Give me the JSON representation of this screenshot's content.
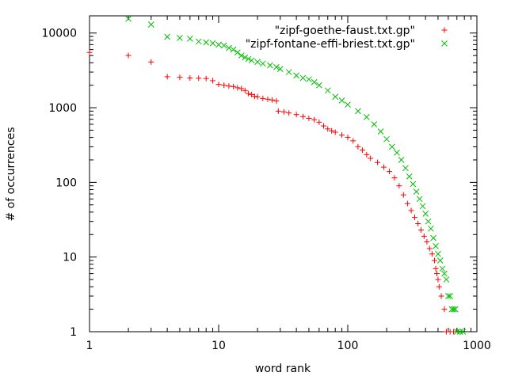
{
  "chart_data": {
    "type": "scatter",
    "title": "",
    "xlabel": "word rank",
    "ylabel": "# of occurrences",
    "xscale": "log",
    "yscale": "log",
    "xlim": [
      1,
      1000
    ],
    "ylim": [
      1,
      17000
    ],
    "grid": false,
    "legend_position": "top-right",
    "x_ticks": [
      {
        "value": 1,
        "label": "1"
      },
      {
        "value": 10,
        "label": "10"
      },
      {
        "value": 100,
        "label": "100"
      },
      {
        "value": 1000,
        "label": "1000"
      }
    ],
    "y_ticks": [
      {
        "value": 1,
        "label": "1"
      },
      {
        "value": 10,
        "label": "10"
      },
      {
        "value": 100,
        "label": "100"
      },
      {
        "value": 1000,
        "label": "1000"
      },
      {
        "value": 10000,
        "label": "10000"
      }
    ],
    "series": [
      {
        "name": "\"zipf-goethe-faust.txt.gp\"",
        "color": "#ff0000",
        "marker": "plus",
        "points": [
          [
            1,
            5500
          ],
          [
            2,
            5000
          ],
          [
            3,
            4100
          ],
          [
            4,
            2600
          ],
          [
            5,
            2550
          ],
          [
            6,
            2500
          ],
          [
            7,
            2480
          ],
          [
            8,
            2460
          ],
          [
            9,
            2300
          ],
          [
            10,
            2050
          ],
          [
            11,
            2000
          ],
          [
            12,
            1950
          ],
          [
            13,
            1920
          ],
          [
            14,
            1850
          ],
          [
            15,
            1800
          ],
          [
            16,
            1700
          ],
          [
            17,
            1550
          ],
          [
            18,
            1500
          ],
          [
            19,
            1420
          ],
          [
            20,
            1400
          ],
          [
            22,
            1330
          ],
          [
            24,
            1300
          ],
          [
            26,
            1270
          ],
          [
            28,
            1230
          ],
          [
            29,
            900
          ],
          [
            32,
            880
          ],
          [
            35,
            850
          ],
          [
            40,
            810
          ],
          [
            45,
            760
          ],
          [
            50,
            720
          ],
          [
            55,
            690
          ],
          [
            60,
            640
          ],
          [
            65,
            570
          ],
          [
            70,
            520
          ],
          [
            75,
            490
          ],
          [
            80,
            470
          ],
          [
            90,
            430
          ],
          [
            100,
            400
          ],
          [
            110,
            360
          ],
          [
            120,
            300
          ],
          [
            130,
            270
          ],
          [
            140,
            235
          ],
          [
            150,
            210
          ],
          [
            170,
            185
          ],
          [
            190,
            160
          ],
          [
            210,
            140
          ],
          [
            230,
            115
          ],
          [
            250,
            90
          ],
          [
            270,
            68
          ],
          [
            290,
            52
          ],
          [
            310,
            42
          ],
          [
            330,
            34
          ],
          [
            350,
            28
          ],
          [
            370,
            23
          ],
          [
            390,
            19
          ],
          [
            410,
            16
          ],
          [
            430,
            13
          ],
          [
            450,
            11
          ],
          [
            470,
            9
          ],
          [
            480,
            7
          ],
          [
            490,
            6
          ],
          [
            500,
            5
          ],
          [
            510,
            4
          ],
          [
            530,
            3
          ],
          [
            560,
            2
          ],
          [
            580,
            1
          ],
          [
            620,
            1
          ],
          [
            660,
            1
          ]
        ]
      },
      {
        "name": "\"zipf-fontane-effi-briest.txt.gp\"",
        "color": "#00c000",
        "marker": "cross",
        "points": [
          [
            2,
            15500
          ],
          [
            3,
            13000
          ],
          [
            4,
            8900
          ],
          [
            5,
            8600
          ],
          [
            6,
            8400
          ],
          [
            7,
            7700
          ],
          [
            8,
            7500
          ],
          [
            9,
            7300
          ],
          [
            10,
            7000
          ],
          [
            11,
            6800
          ],
          [
            12,
            6300
          ],
          [
            13,
            6000
          ],
          [
            14,
            5500
          ],
          [
            15,
            5000
          ],
          [
            16,
            4700
          ],
          [
            17,
            4500
          ],
          [
            18,
            4300
          ],
          [
            20,
            4100
          ],
          [
            22,
            3900
          ],
          [
            25,
            3700
          ],
          [
            28,
            3500
          ],
          [
            30,
            3300
          ],
          [
            35,
            3000
          ],
          [
            40,
            2700
          ],
          [
            45,
            2500
          ],
          [
            50,
            2400
          ],
          [
            55,
            2200
          ],
          [
            60,
            2000
          ],
          [
            70,
            1700
          ],
          [
            80,
            1400
          ],
          [
            90,
            1250
          ],
          [
            100,
            1100
          ],
          [
            120,
            900
          ],
          [
            140,
            750
          ],
          [
            160,
            600
          ],
          [
            180,
            480
          ],
          [
            200,
            380
          ],
          [
            220,
            300
          ],
          [
            240,
            250
          ],
          [
            260,
            200
          ],
          [
            280,
            155
          ],
          [
            300,
            120
          ],
          [
            320,
            95
          ],
          [
            340,
            75
          ],
          [
            360,
            60
          ],
          [
            380,
            48
          ],
          [
            400,
            38
          ],
          [
            420,
            30
          ],
          [
            440,
            24
          ],
          [
            460,
            18
          ],
          [
            480,
            14
          ],
          [
            500,
            11
          ],
          [
            520,
            9
          ],
          [
            540,
            7
          ],
          [
            560,
            6
          ],
          [
            580,
            5
          ],
          [
            600,
            3
          ],
          [
            620,
            3
          ],
          [
            640,
            2
          ],
          [
            660,
            2
          ],
          [
            680,
            2
          ],
          [
            700,
            1
          ],
          [
            740,
            1
          ],
          [
            780,
            1
          ]
        ]
      }
    ]
  }
}
